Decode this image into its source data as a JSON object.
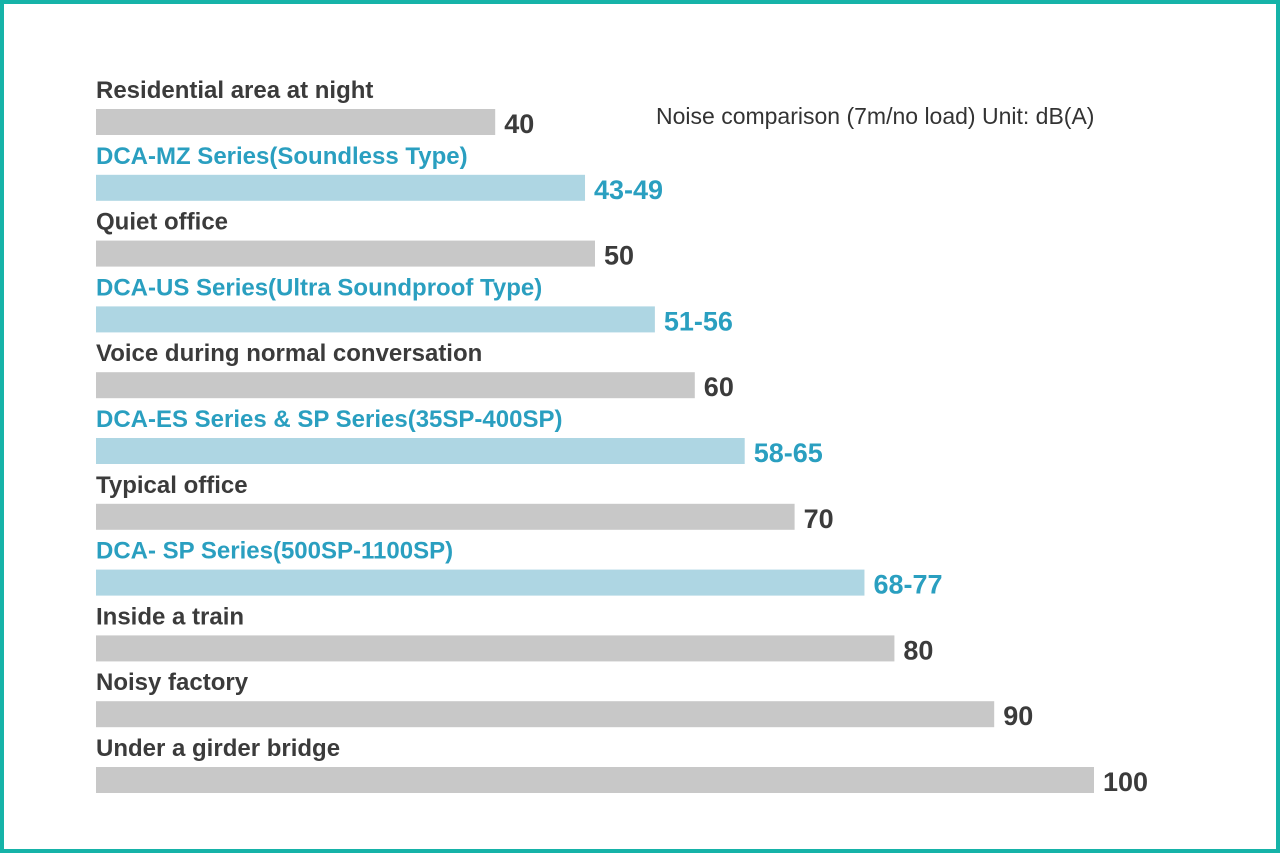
{
  "chart_data": {
    "type": "bar",
    "orientation": "horizontal",
    "subtitle": "Noise comparison (7m/no load) Unit: dB(A)",
    "xlim": [
      0,
      100
    ],
    "grid": false,
    "legend": "none",
    "categories": [
      "Residential area at night",
      "DCA-MZ Series(Soundless Type)",
      "Quiet office",
      "DCA-US Series(Ultra Soundproof Type)",
      "Voice during normal conversation",
      "DCA-ES Series & SP Series(35SP-400SP)",
      "Typical office",
      "DCA- SP Series(500SP-1100SP)",
      "Inside a train",
      "Noisy factory",
      "Under a girder bridge"
    ],
    "values": [
      40,
      49,
      50,
      56,
      60,
      65,
      70,
      77,
      80,
      90,
      100
    ],
    "value_labels": [
      "40",
      "43-49",
      "50",
      "51-56",
      "60",
      "58-65",
      "70",
      "68-77",
      "80",
      "90",
      "100"
    ],
    "highlight": [
      false,
      true,
      false,
      true,
      false,
      true,
      false,
      true,
      false,
      false,
      false
    ]
  },
  "colors": {
    "reference_bar": "#c8c8c8",
    "product_bar": "#aed6e3",
    "reference_text": "#3b3b3b",
    "product_text": "#2a9fc0",
    "frame": "#16b3a8"
  }
}
